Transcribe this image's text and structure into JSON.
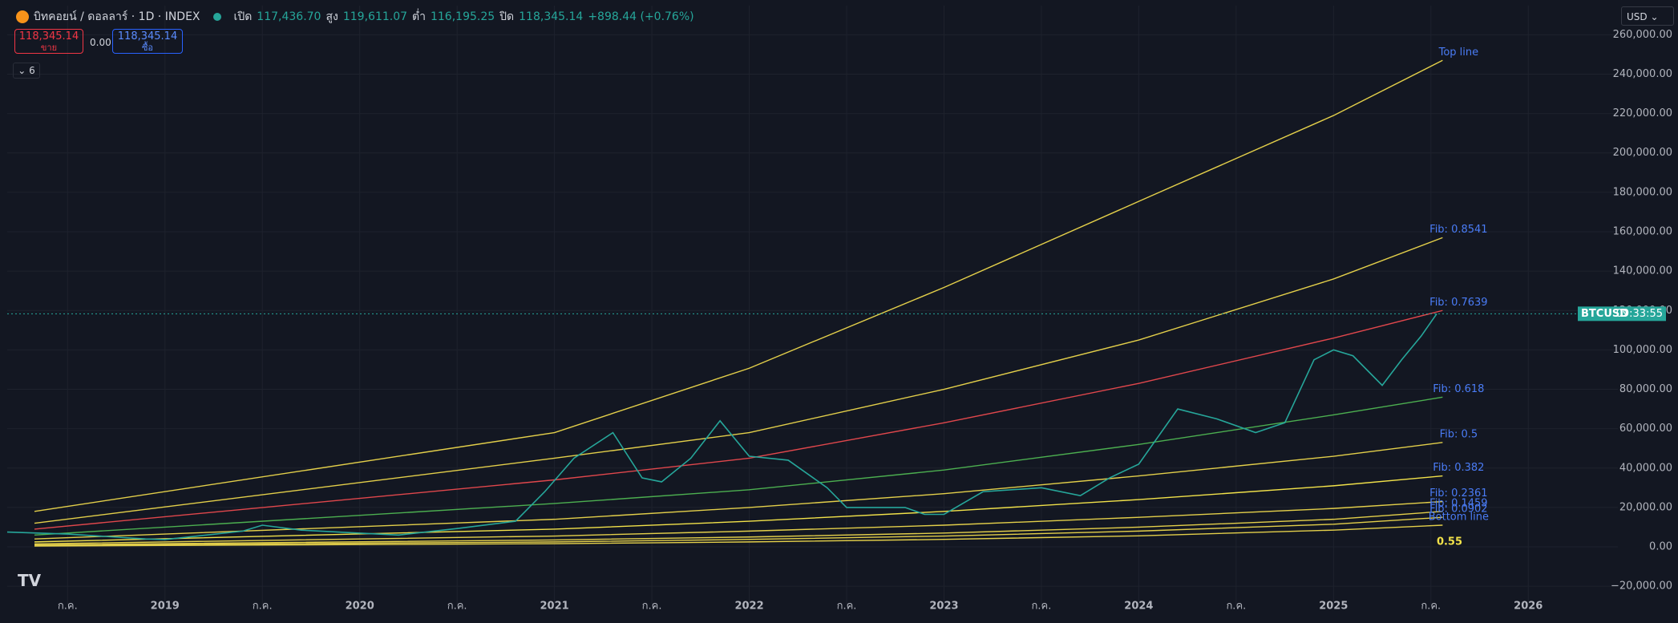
{
  "header": {
    "symbol": "บิทคอยน์ / ดอลลาร์ · 1D · INDEX",
    "ohlc": [
      {
        "label": "เปิด",
        "value": "117,436.70"
      },
      {
        "label": "สูง",
        "value": "119,611.07"
      },
      {
        "label": "ต่ำ",
        "value": "116,195.25"
      },
      {
        "label": "ปิด",
        "value": "118,345.14"
      }
    ],
    "change": "+898.44 (+0.76%)"
  },
  "trade": {
    "sell_price": "118,345.14",
    "sell_label": "ขาย",
    "spread": "0.00",
    "buy_price": "118,345.14",
    "buy_label": "ซื้อ"
  },
  "indicators_count": "6",
  "currency": "USD",
  "chart_data": {
    "type": "line",
    "xlim": [
      2018.19,
      2026.46
    ],
    "xticks": [
      {
        "value": 2018.5,
        "label": "ก.ค."
      },
      2019,
      {
        "value": 2019.5,
        "label": "ก.ค."
      },
      2020,
      {
        "value": 2020.5,
        "label": "ก.ค."
      },
      2021,
      {
        "value": 2021.5,
        "label": "ก.ค."
      },
      2022,
      {
        "value": 2022.5,
        "label": "ก.ค."
      },
      2023,
      {
        "value": 2023.5,
        "label": "ก.ค."
      },
      2024,
      {
        "value": 2024.5,
        "label": "ก.ค."
      },
      2025,
      {
        "value": 2025.5,
        "label": "ก.ค."
      },
      2026
    ],
    "ylim": [
      -29300,
      274800
    ],
    "yticks": [
      {
        "value": -20000,
        "label": "−20,000.00"
      },
      {
        "value": 0,
        "label": "0.00"
      },
      {
        "value": 20000,
        "label": "20,000.00"
      },
      {
        "value": 40000,
        "label": "40,000.00"
      },
      {
        "value": 60000,
        "label": "60,000.00"
      },
      {
        "value": 80000,
        "label": "80,000.00"
      },
      {
        "value": 100000,
        "label": "100,000.00"
      },
      {
        "value": 120000,
        "label": "120,000.00"
      },
      {
        "value": 140000,
        "label": "140,000.00"
      },
      {
        "value": 160000,
        "label": "160,000.00"
      },
      {
        "value": 180000,
        "label": "180,000.00"
      },
      {
        "value": 200000,
        "label": "200,000.00"
      },
      {
        "value": 220000,
        "label": "220,000.00"
      },
      {
        "value": 240000,
        "label": "240,000.00"
      },
      {
        "value": 260000,
        "label": "260,000.00"
      }
    ],
    "grid": true,
    "x": [
      2018.33,
      2021,
      2022,
      2023,
      2024,
      2025,
      2025.56
    ],
    "series": [
      {
        "name": "Top line",
        "color": "#e3cf4a",
        "values": [
          18000,
          58000,
          90700,
          131700,
          175400,
          219000,
          247000
        ]
      },
      {
        "name": "Fib: 0.8541",
        "color": "#e3cf4a",
        "values": [
          12000,
          45000,
          58000,
          80000,
          105000,
          136000,
          157000
        ]
      },
      {
        "name": "Fib: 0.7639",
        "color": "#e0474c",
        "values": [
          9000,
          34000,
          45000,
          63000,
          83000,
          106000,
          120000
        ]
      },
      {
        "name": "Fib: 0.618",
        "color": "#4caf50",
        "values": [
          6000,
          22000,
          29000,
          39000,
          52000,
          67000,
          76000
        ]
      },
      {
        "name": "Fib: 0.5",
        "color": "#e3cf4a",
        "values": [
          4000,
          14000,
          20000,
          27000,
          36000,
          46000,
          53000
        ]
      },
      {
        "name": "Fib: 0.382",
        "color": "#f2e24a",
        "values": [
          2500,
          9000,
          13000,
          18000,
          24000,
          31000,
          36000
        ]
      },
      {
        "name": "Fib: 0.2361",
        "color": "#e3cf4a",
        "values": [
          1500,
          5500,
          8000,
          11000,
          15000,
          19500,
          23000
        ]
      },
      {
        "name": "Fib: 0.1459",
        "color": "#e3cf4a",
        "values": [
          1000,
          3500,
          5000,
          7000,
          10000,
          14000,
          18000
        ]
      },
      {
        "name": "Fib: 0.0902",
        "color": "#e3cf4a",
        "values": [
          700,
          2500,
          3800,
          5500,
          8000,
          11500,
          15000
        ]
      },
      {
        "name": "Bottom line",
        "color": "#e3cf4a",
        "values": [
          400,
          1600,
          2500,
          3800,
          5600,
          8500,
          11000
        ]
      }
    ],
    "price": {
      "color": "#26a69a",
      "x": [
        2018.19,
        2018.5,
        2018.9,
        2019.0,
        2019.4,
        2019.5,
        2019.7,
        2019.95,
        2020.2,
        2020.5,
        2020.8,
        2020.95,
        2021.1,
        2021.3,
        2021.45,
        2021.55,
        2021.7,
        2021.85,
        2022.0,
        2022.2,
        2022.4,
        2022.5,
        2022.8,
        2022.9,
        2023.0,
        2023.2,
        2023.5,
        2023.7,
        2023.85,
        2024.0,
        2024.2,
        2024.4,
        2024.6,
        2024.75,
        2024.9,
        2025.0,
        2025.1,
        2025.25,
        2025.35,
        2025.45,
        2025.53
      ],
      "values": [
        7500,
        6500,
        4000,
        3700,
        8000,
        11000,
        8500,
        7200,
        6000,
        9300,
        13000,
        28000,
        45000,
        58000,
        35000,
        33000,
        45000,
        64000,
        46000,
        44000,
        30000,
        20000,
        20000,
        16500,
        16500,
        28000,
        30000,
        26000,
        35000,
        42000,
        70000,
        65000,
        58000,
        63000,
        95000,
        100000,
        97000,
        82000,
        95000,
        107000,
        118345
      ]
    },
    "last_price": {
      "label": "BTCUSD",
      "value": 118345.14,
      "countdown": "09:33:55"
    },
    "annotations": [
      "0.55"
    ]
  }
}
